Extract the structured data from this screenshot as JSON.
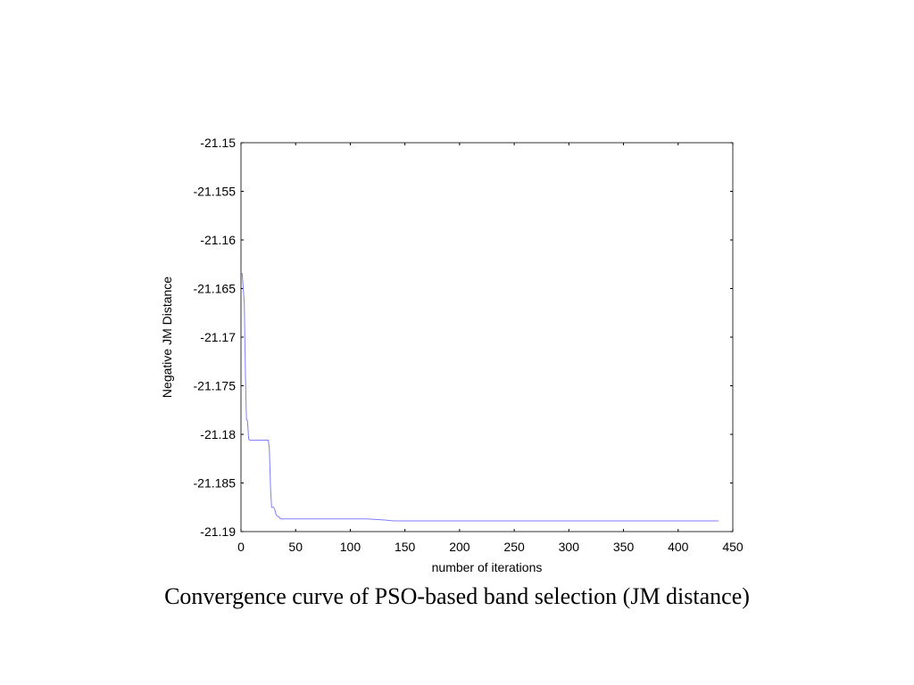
{
  "caption": "Convergence curve of PSO-based band selection (JM distance)",
  "colors": {
    "line": "#7f7fff",
    "axes": "#000000",
    "background": "#ffffff"
  },
  "chart_data": {
    "type": "line",
    "title": "",
    "xlabel": "number of iterations",
    "ylabel": "Negative JM Distance",
    "xlim": [
      0,
      450
    ],
    "ylim": [
      -21.19,
      -21.15
    ],
    "xticks": [
      0,
      50,
      100,
      150,
      200,
      250,
      300,
      350,
      400,
      450
    ],
    "yticks": [
      -21.15,
      -21.155,
      -21.16,
      -21.165,
      -21.17,
      -21.175,
      -21.18,
      -21.185,
      -21.19
    ],
    "xtick_labels": [
      "0",
      "50",
      "100",
      "150",
      "200",
      "250",
      "300",
      "350",
      "400",
      "450"
    ],
    "ytick_labels": [
      "-21.15",
      "-21.155",
      "-21.16",
      "-21.165",
      "-21.17",
      "-21.175",
      "-21.18",
      "-21.185",
      "-21.19"
    ],
    "grid": false,
    "legend": "none",
    "series": [
      {
        "x": [
          1,
          2,
          3,
          4,
          5,
          6,
          7,
          8,
          9,
          10,
          25,
          26,
          27,
          28,
          30,
          31,
          32,
          33,
          35,
          36,
          37,
          40,
          110,
          115,
          130,
          140,
          150,
          437
        ],
        "y": [
          -21.1634,
          -21.1648,
          -21.1665,
          -21.1735,
          -21.1785,
          -21.1786,
          -21.1805,
          -21.1806,
          -21.1806,
          -21.1806,
          -21.1806,
          -21.1815,
          -21.1855,
          -21.1875,
          -21.1875,
          -21.1878,
          -21.1882,
          -21.1884,
          -21.1885,
          -21.1887,
          -21.1887,
          -21.1887,
          -21.1887,
          -21.1887,
          -21.1888,
          -21.1889,
          -21.1889,
          -21.1889
        ]
      }
    ]
  }
}
